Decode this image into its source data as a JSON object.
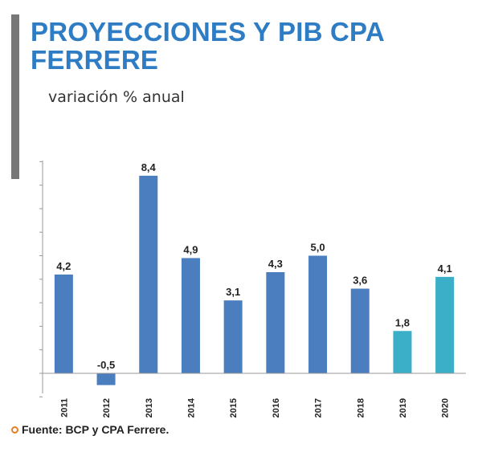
{
  "colors": {
    "title": "#2e7cc4",
    "actual": "#4a7ebf",
    "projection": "#3aafc7",
    "side_bar": "#777777",
    "axis": "#999999",
    "source_dot": "#e67e22"
  },
  "title": "PROYECCIONES Y PIB CPA FERRERE",
  "subtitle": "variación % anual",
  "source": "Fuente: BCP y CPA Ferrere.",
  "chart_data": {
    "type": "bar",
    "title": "PROYECCIONES Y PIB CPA FERRERE",
    "subtitle": "variación % anual",
    "xlabel": "",
    "ylabel": "variación % anual",
    "categories": [
      "2011",
      "2012",
      "2013",
      "2014",
      "2015",
      "2016",
      "2017",
      "2018",
      "2019",
      "2020"
    ],
    "values": [
      4.2,
      -0.5,
      8.4,
      4.9,
      3.1,
      4.3,
      5.0,
      3.6,
      1.8,
      4.1
    ],
    "labels": [
      "4,2",
      "-0,5",
      "8,4",
      "4,9",
      "3,1",
      "4,3",
      "5,0",
      "3,6",
      "1,8",
      "4,1"
    ],
    "projection": [
      false,
      false,
      false,
      false,
      false,
      false,
      false,
      false,
      true,
      true
    ],
    "ylim": [
      -1,
      9
    ],
    "grid": false,
    "legend": "none"
  }
}
